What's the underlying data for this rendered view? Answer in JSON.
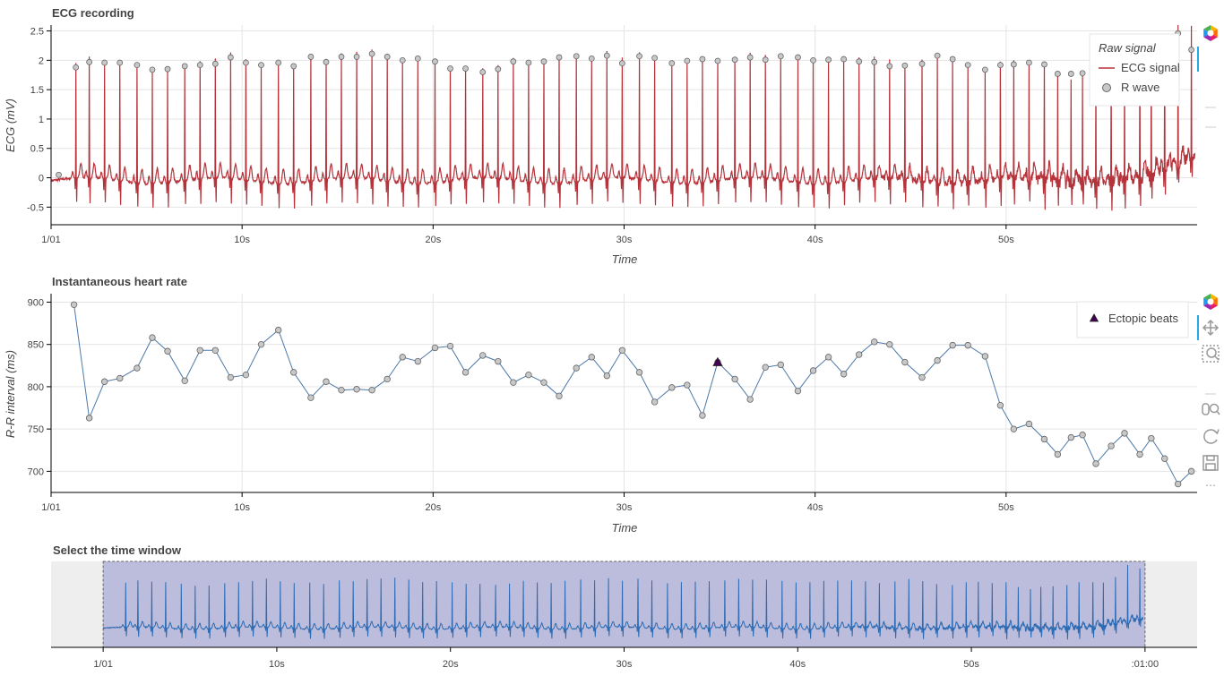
{
  "chart_data": [
    {
      "type": "line",
      "title": "ECG recording",
      "xlabel": "Time",
      "ylabel": "ECG (mV)",
      "xlim": [
        0,
        60
      ],
      "ylim": [
        -0.8,
        2.6
      ],
      "x_ticks": [
        0,
        10,
        20,
        30,
        40,
        50
      ],
      "x_tick_labels": [
        "1/01",
        "10s",
        "20s",
        "30s",
        "40s",
        "50s"
      ],
      "y_ticks": [
        -0.5,
        0,
        0.5,
        1,
        1.5,
        2,
        2.5
      ],
      "y_tick_labels": [
        "-0.5",
        "0",
        "0.5",
        "1",
        "1.5",
        "2",
        "2.5"
      ],
      "grid": true,
      "legend": {
        "title": "Raw signal",
        "placement": "top-right",
        "entries": [
          "ECG signal",
          "R wave"
        ]
      },
      "series": [
        {
          "name": "ECG signal",
          "color": "#b5343c",
          "style": "line"
        },
        {
          "name": "R wave",
          "color": "#c0c0c0",
          "style": "marker",
          "points": [
            [
              0.4,
              0.05
            ],
            [
              1.3,
              1.88
            ],
            [
              2.0,
              1.97
            ],
            [
              2.8,
              1.96
            ],
            [
              3.6,
              1.96
            ],
            [
              4.5,
              1.92
            ],
            [
              5.3,
              1.84
            ],
            [
              6.1,
              1.85
            ],
            [
              7.0,
              1.9
            ],
            [
              7.8,
              1.92
            ],
            [
              8.6,
              1.94
            ],
            [
              9.4,
              2.05
            ],
            [
              10.2,
              1.96
            ],
            [
              11.0,
              1.92
            ],
            [
              11.9,
              1.96
            ],
            [
              12.7,
              1.9
            ],
            [
              13.6,
              2.06
            ],
            [
              14.4,
              1.97
            ],
            [
              15.2,
              2.06
            ],
            [
              16.0,
              2.06
            ],
            [
              16.8,
              2.11
            ],
            [
              17.6,
              2.06
            ],
            [
              18.4,
              2.0
            ],
            [
              19.2,
              2.03
            ],
            [
              20.1,
              1.98
            ],
            [
              20.9,
              1.86
            ],
            [
              21.7,
              1.86
            ],
            [
              22.6,
              1.8
            ],
            [
              23.4,
              1.85
            ],
            [
              24.2,
              1.98
            ],
            [
              25.0,
              1.96
            ],
            [
              25.8,
              1.98
            ],
            [
              26.6,
              2.05
            ],
            [
              27.5,
              2.07
            ],
            [
              28.3,
              2.03
            ],
            [
              29.1,
              2.08
            ],
            [
              29.9,
              1.95
            ],
            [
              30.8,
              2.07
            ],
            [
              31.6,
              2.04
            ],
            [
              32.5,
              1.95
            ],
            [
              33.3,
              1.99
            ],
            [
              34.1,
              2.02
            ],
            [
              34.9,
              1.99
            ],
            [
              35.8,
              2.01
            ],
            [
              36.6,
              2.05
            ],
            [
              37.4,
              2.01
            ],
            [
              38.2,
              2.07
            ],
            [
              39.1,
              2.05
            ],
            [
              39.9,
              2.0
            ],
            [
              40.7,
              2.01
            ],
            [
              41.5,
              2.02
            ],
            [
              42.3,
              1.98
            ],
            [
              43.1,
              1.97
            ],
            [
              43.9,
              1.9
            ],
            [
              44.7,
              1.91
            ],
            [
              45.6,
              1.94
            ],
            [
              46.4,
              2.08
            ],
            [
              47.2,
              2.02
            ],
            [
              48.0,
              1.92
            ],
            [
              48.9,
              1.84
            ],
            [
              49.7,
              1.92
            ],
            [
              50.4,
              1.93
            ],
            [
              51.2,
              1.96
            ],
            [
              52.0,
              1.93
            ],
            [
              52.7,
              1.77
            ],
            [
              53.4,
              1.77
            ],
            [
              54.0,
              1.78
            ],
            [
              54.7,
              1.85
            ],
            [
              55.5,
              1.83
            ],
            [
              56.2,
              1.86
            ],
            [
              57.0,
              1.92
            ],
            [
              57.6,
              1.96
            ],
            [
              58.3,
              2.05
            ],
            [
              59.0,
              2.46
            ],
            [
              59.7,
              2.18
            ]
          ]
        }
      ]
    },
    {
      "type": "line",
      "title": "Instantaneous heart rate",
      "xlabel": "Time",
      "ylabel": "R-R interval (ms)",
      "xlim": [
        0,
        60
      ],
      "ylim": [
        675,
        910
      ],
      "x_ticks": [
        0,
        10,
        20,
        30,
        40,
        50
      ],
      "x_tick_labels": [
        "1/01",
        "10s",
        "20s",
        "30s",
        "40s",
        "50s"
      ],
      "y_ticks": [
        700,
        750,
        800,
        850,
        900
      ],
      "y_tick_labels": [
        "700",
        "750",
        "800",
        "850",
        "900"
      ],
      "grid": true,
      "legend": {
        "placement": "top-right",
        "entries": [
          "Ectopic beats"
        ]
      },
      "series": [
        {
          "name": "R-R interval",
          "color": "#4c78a8",
          "x": [
            1.2,
            2.0,
            2.8,
            3.6,
            4.5,
            5.3,
            6.1,
            7.0,
            7.8,
            8.6,
            9.4,
            10.2,
            11.0,
            11.9,
            12.7,
            13.6,
            14.4,
            15.2,
            16.0,
            16.8,
            17.6,
            18.4,
            19.2,
            20.1,
            20.9,
            21.7,
            22.6,
            23.4,
            24.2,
            25.0,
            25.8,
            26.6,
            27.5,
            28.3,
            29.1,
            29.9,
            30.8,
            31.6,
            32.5,
            33.3,
            34.1,
            34.9,
            35.8,
            36.6,
            37.4,
            38.2,
            39.1,
            39.9,
            40.7,
            41.5,
            42.3,
            43.1,
            43.9,
            44.7,
            45.6,
            46.4,
            47.2,
            48.0,
            48.9,
            49.7,
            50.4,
            51.2,
            52.0,
            52.7,
            53.4,
            54.0,
            54.7,
            55.5,
            56.2,
            57.0,
            57.6,
            58.3,
            59.0,
            59.7
          ],
          "y": [
            897,
            763,
            806,
            810,
            822,
            858,
            842,
            807,
            843,
            843,
            811,
            814,
            850,
            867,
            817,
            787,
            806,
            796,
            797,
            796,
            809,
            835,
            830,
            846,
            848,
            817,
            837,
            830,
            805,
            814,
            805,
            789,
            822,
            835,
            813,
            843,
            817,
            782,
            799,
            802,
            766,
            829,
            809,
            785,
            823,
            826,
            795,
            819,
            835,
            815,
            838,
            853,
            850,
            829,
            811,
            831,
            849,
            849,
            836,
            778,
            750,
            756,
            738,
            720,
            740,
            743,
            709,
            730,
            745,
            720,
            739,
            715,
            685,
            700
          ],
          "ectopic": [
            [
              34.9,
              829
            ]
          ]
        }
      ]
    },
    {
      "type": "line",
      "title": "Select the time window",
      "x_ticks": [
        0,
        10,
        20,
        30,
        40,
        50,
        60
      ],
      "x_tick_labels": [
        "1/01",
        "10s",
        "20s",
        "30s",
        "40s",
        "50s",
        ":01:00"
      ],
      "xlim": [
        -3,
        63
      ],
      "selection": [
        0,
        60
      ],
      "series": [
        {
          "name": "ECG signal",
          "color": "#2c6bb3"
        }
      ]
    }
  ],
  "toolbar": {
    "icons": [
      "bokeh-logo-icon",
      "pan-icon",
      "wheel-zoom-icon",
      "box-zoom-icon",
      "reset-icon",
      "save-icon",
      "more-icon"
    ]
  }
}
